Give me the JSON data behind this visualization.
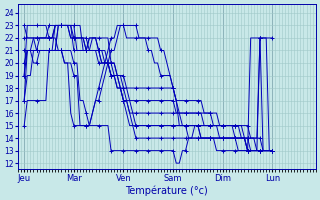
{
  "title": "Température (°c)",
  "bg_color": "#c8e8e8",
  "grid_color": "#a0c8c8",
  "line_color": "#0000bb",
  "marker_color": "#0000bb",
  "ylabel_values": [
    12,
    13,
    14,
    15,
    16,
    17,
    18,
    19,
    20,
    21,
    22,
    23,
    24
  ],
  "ylim": [
    11.5,
    24.7
  ],
  "day_labels": [
    "Jeu",
    "Mar",
    "Ven",
    "Sam",
    "Dim",
    "Lun"
  ],
  "day_ticks": [
    0,
    16,
    32,
    48,
    64,
    80
  ],
  "xlim": [
    -2,
    94
  ],
  "n_ticks_per_day": 16,
  "series": [
    [
      19,
      21,
      21,
      21,
      21,
      21,
      21,
      21,
      21,
      21,
      21,
      23,
      23,
      23,
      23,
      23,
      23,
      23,
      23,
      21,
      21,
      22,
      22,
      22,
      22,
      22,
      22,
      22,
      20,
      20,
      19,
      19,
      19,
      18,
      17,
      16,
      15,
      15,
      15,
      15,
      15,
      15,
      15,
      15,
      15,
      15,
      15,
      15,
      15,
      15,
      15,
      15,
      15,
      15,
      15,
      15,
      15,
      15,
      15,
      15,
      15,
      15,
      15,
      15,
      15,
      15,
      15,
      15,
      15,
      15,
      15,
      15,
      15,
      14,
      14,
      14,
      14,
      13,
      13,
      13,
      13
    ],
    [
      15,
      17,
      17,
      17,
      17,
      17,
      17,
      17,
      21,
      21,
      21,
      23,
      23,
      23,
      23,
      23,
      23,
      21,
      21,
      21,
      21,
      22,
      22,
      22,
      21,
      21,
      21,
      20,
      20,
      20,
      19,
      19,
      18,
      17,
      16,
      15,
      14,
      14,
      14,
      14,
      14,
      14,
      14,
      14,
      14,
      14,
      14,
      14,
      14,
      14,
      14,
      14,
      14,
      14,
      14,
      14,
      14,
      14,
      14,
      14,
      14,
      14,
      14,
      14,
      14,
      14,
      14,
      14,
      14,
      14,
      14,
      14,
      14,
      13,
      13,
      13,
      13,
      13,
      13,
      13,
      13
    ],
    [
      17,
      19,
      19,
      21,
      21,
      21,
      21,
      21,
      21,
      21,
      23,
      23,
      23,
      23,
      23,
      23,
      21,
      21,
      21,
      21,
      21,
      21,
      22,
      22,
      21,
      21,
      20,
      20,
      19,
      19,
      18,
      18,
      17,
      16,
      15,
      15,
      15,
      15,
      15,
      15,
      15,
      15,
      15,
      15,
      15,
      15,
      15,
      15,
      15,
      15,
      15,
      15,
      15,
      15,
      15,
      15,
      15,
      15,
      15,
      15,
      15,
      15,
      15,
      15,
      15,
      15,
      15,
      15,
      15,
      15,
      15,
      14,
      14,
      14,
      14,
      13,
      13,
      13,
      13,
      13,
      13
    ],
    [
      20,
      21,
      21,
      21,
      21,
      22,
      22,
      22,
      22,
      22,
      23,
      23,
      23,
      23,
      23,
      23,
      22,
      22,
      22,
      22,
      21,
      21,
      21,
      21,
      21,
      20,
      20,
      20,
      19,
      19,
      19,
      18,
      17,
      17,
      16,
      16,
      16,
      16,
      16,
      16,
      16,
      16,
      16,
      16,
      16,
      16,
      16,
      16,
      16,
      16,
      16,
      16,
      16,
      16,
      16,
      16,
      16,
      16,
      16,
      16,
      16,
      15,
      15,
      15,
      15,
      15,
      15,
      15,
      15,
      15,
      14,
      14,
      13,
      13,
      13,
      13,
      13,
      13,
      13,
      13,
      13
    ],
    [
      21,
      21,
      21,
      22,
      22,
      22,
      22,
      22,
      22,
      22,
      23,
      23,
      23,
      23,
      23,
      22,
      22,
      22,
      22,
      22,
      21,
      21,
      21,
      21,
      20,
      20,
      20,
      20,
      19,
      19,
      18,
      18,
      17,
      17,
      17,
      17,
      17,
      17,
      17,
      17,
      17,
      17,
      17,
      17,
      17,
      17,
      17,
      17,
      17,
      16,
      16,
      16,
      16,
      16,
      16,
      16,
      16,
      16,
      15,
      15,
      15,
      15,
      15,
      14,
      14,
      14,
      14,
      14,
      14,
      14,
      14,
      14,
      13,
      13,
      13,
      13,
      13,
      13,
      13,
      13,
      13
    ],
    [
      22,
      22,
      22,
      22,
      22,
      22,
      22,
      22,
      23,
      23,
      23,
      23,
      23,
      23,
      23,
      22,
      22,
      22,
      22,
      22,
      22,
      21,
      21,
      21,
      21,
      20,
      20,
      20,
      20,
      19,
      19,
      18,
      18,
      18,
      18,
      18,
      18,
      18,
      18,
      18,
      18,
      18,
      18,
      18,
      18,
      18,
      18,
      18,
      18,
      17,
      17,
      17,
      17,
      17,
      17,
      17,
      17,
      17,
      16,
      16,
      16,
      16,
      16,
      15,
      15,
      15,
      15,
      15,
      14,
      14,
      14,
      14,
      13,
      13,
      13,
      13,
      13,
      13,
      13,
      13,
      13
    ],
    [
      19,
      23,
      23,
      23,
      23,
      23,
      23,
      23,
      22,
      22,
      22,
      21,
      21,
      21,
      21,
      21,
      20,
      20,
      17,
      17,
      16,
      15,
      15,
      15,
      15,
      15,
      15,
      15,
      13,
      13,
      13,
      13,
      13,
      13,
      13,
      13,
      13,
      13,
      13,
      13,
      13,
      13,
      13,
      13,
      13,
      13,
      13,
      13,
      13,
      12,
      12,
      13,
      13,
      14,
      14,
      14,
      14,
      14,
      14,
      14,
      14,
      14,
      13,
      13,
      13,
      13,
      13,
      13,
      13,
      13,
      13,
      13,
      13,
      13,
      13,
      13,
      22,
      22,
      22,
      22,
      22
    ],
    [
      17,
      21,
      21,
      20,
      20,
      21,
      21,
      21,
      21,
      21,
      21,
      21,
      21,
      20,
      20,
      16,
      15,
      15,
      15,
      15,
      15,
      15,
      16,
      17,
      17,
      18,
      19,
      20,
      21,
      21,
      22,
      23,
      23,
      23,
      23,
      23,
      23,
      22,
      22,
      22,
      22,
      22,
      22,
      22,
      21,
      21,
      20,
      19,
      18,
      17,
      16,
      15,
      15,
      14,
      14,
      15,
      15,
      14,
      14,
      14,
      14,
      14,
      14,
      14,
      14,
      14,
      14,
      14,
      14,
      14,
      14,
      14,
      14,
      14,
      14,
      14,
      22,
      22,
      22,
      13,
      13
    ],
    [
      23,
      22,
      22,
      22,
      21,
      21,
      21,
      21,
      21,
      21,
      21,
      21,
      21,
      20,
      20,
      20,
      19,
      19,
      15,
      15,
      15,
      15,
      16,
      17,
      18,
      19,
      20,
      21,
      22,
      22,
      23,
      23,
      23,
      22,
      22,
      22,
      22,
      22,
      22,
      22,
      21,
      21,
      20,
      20,
      19,
      19,
      19,
      19,
      18,
      17,
      15,
      15,
      15,
      15,
      15,
      15,
      15,
      14,
      14,
      14,
      14,
      14,
      14,
      14,
      14,
      14,
      14,
      14,
      14,
      13,
      13,
      13,
      13,
      22,
      22,
      22,
      22,
      13,
      13,
      13,
      13
    ]
  ]
}
